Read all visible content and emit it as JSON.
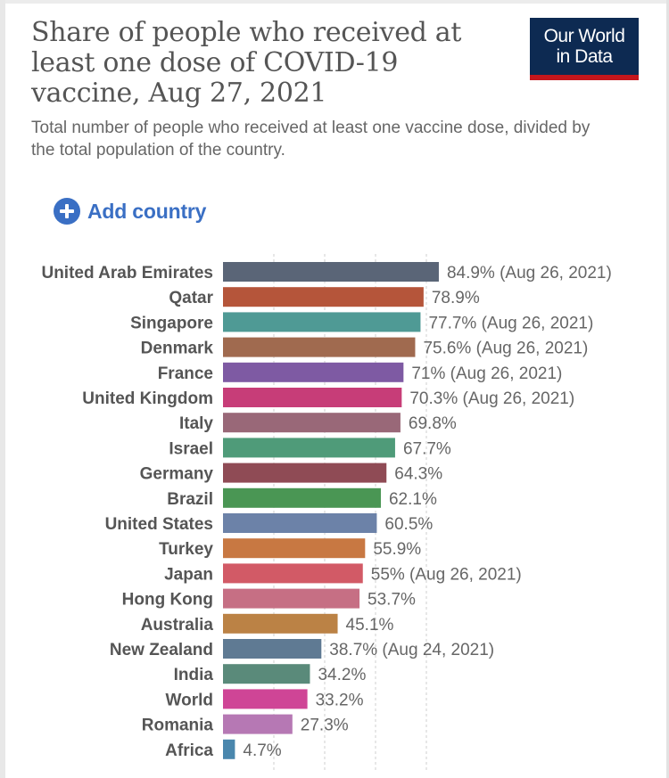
{
  "header": {
    "title": "Share of people who received at least one dose of COVID-19 vaccine, Aug 27, 2021",
    "subtitle": "Total number of people who received at least one vaccine dose, divided by the total population of the country.",
    "logo_line1": "Our World",
    "logo_line2": "in Data",
    "logo_color": "#0d2a52",
    "logo_accent": "#c4161c"
  },
  "controls": {
    "add_country_label": "Add country",
    "add_country_icon": "plus-circle-icon",
    "accent": "#3a6fc4"
  },
  "chart_data": {
    "type": "bar",
    "orientation": "horizontal",
    "title": "Share of people who received at least one dose of COVID-19 vaccine, Aug 27, 2021",
    "xlim": [
      0,
      100
    ],
    "grid": true,
    "categories": [
      "United Arab Emirates",
      "Qatar",
      "Singapore",
      "Denmark",
      "France",
      "United Kingdom",
      "Italy",
      "Israel",
      "Germany",
      "Brazil",
      "United States",
      "Turkey",
      "Japan",
      "Hong Kong",
      "Australia",
      "New Zealand",
      "India",
      "World",
      "Romania",
      "Africa"
    ],
    "values": [
      84.9,
      78.9,
      77.7,
      75.6,
      71,
      70.3,
      69.8,
      67.7,
      64.3,
      62.1,
      60.5,
      55.9,
      55,
      53.7,
      45.1,
      38.7,
      34.2,
      33.2,
      27.3,
      4.7
    ],
    "value_labels": [
      "84.9% (Aug 26, 2021)",
      "78.9%",
      "77.7% (Aug 26, 2021)",
      "75.6% (Aug 26, 2021)",
      "71% (Aug 26, 2021)",
      "70.3% (Aug 26, 2021)",
      "69.8%",
      "67.7%",
      "64.3%",
      "62.1%",
      "60.5%",
      "55.9%",
      "55% (Aug 26, 2021)",
      "53.7%",
      "45.1%",
      "38.7% (Aug 24, 2021)",
      "34.2%",
      "33.2%",
      "27.3%",
      "4.7%"
    ],
    "colors": [
      "#5a6577",
      "#b5553a",
      "#4f9a95",
      "#a06a4f",
      "#7e5aa3",
      "#c73d78",
      "#996878",
      "#4f9b79",
      "#8f4b55",
      "#4a9654",
      "#6c82a8",
      "#c87842",
      "#d25a66",
      "#c66f84",
      "#bb8245",
      "#5f7a93",
      "#5a8a7a",
      "#cf4596",
      "#b678b4",
      "#4a87ad"
    ]
  }
}
